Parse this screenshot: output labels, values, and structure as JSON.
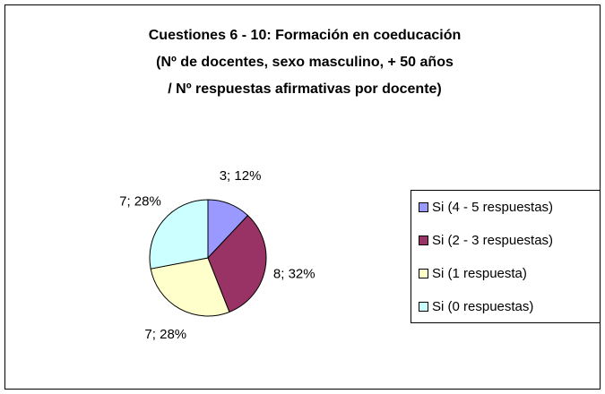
{
  "chart_data": {
    "type": "pie",
    "title": [
      "Cuestiones 6 - 10: Formación en coeducación",
      "(Nº de docentes, sexo masculino, + 50 años",
      "/ Nº respuestas afirmativas por docente)"
    ],
    "categories": [
      "Si (4 - 5 respuestas)",
      "Si (2 - 3 respuestas)",
      "Si (1 respuesta)",
      "Si (0 respuestas)"
    ],
    "values": [
      3,
      8,
      7,
      7
    ],
    "value_labels": [
      "3; 12%",
      "8; 32%",
      "7; 28%",
      "7; 28%"
    ],
    "colors": [
      "#9999ff",
      "#993366",
      "#ffffcc",
      "#ccffff"
    ],
    "legend": "right"
  }
}
